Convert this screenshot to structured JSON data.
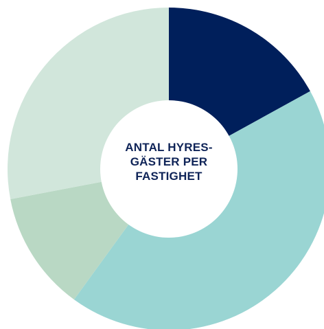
{
  "chart_data": {
    "type": "donut",
    "title_lines": [
      "ANTAL HYRES-",
      "GÄSTER PER",
      "FASTIGHET"
    ],
    "series": [
      {
        "value": 17,
        "color": "#001f5b"
      },
      {
        "value": 43,
        "color": "#9ad5d3"
      },
      {
        "value": 12,
        "color": "#b9d8c4"
      },
      {
        "value": 28,
        "color": "#d1e6db"
      }
    ],
    "start_angle_deg": 0,
    "direction": "clockwise"
  },
  "colors": {
    "title": "#0e2357",
    "hole": "#ffffff"
  }
}
